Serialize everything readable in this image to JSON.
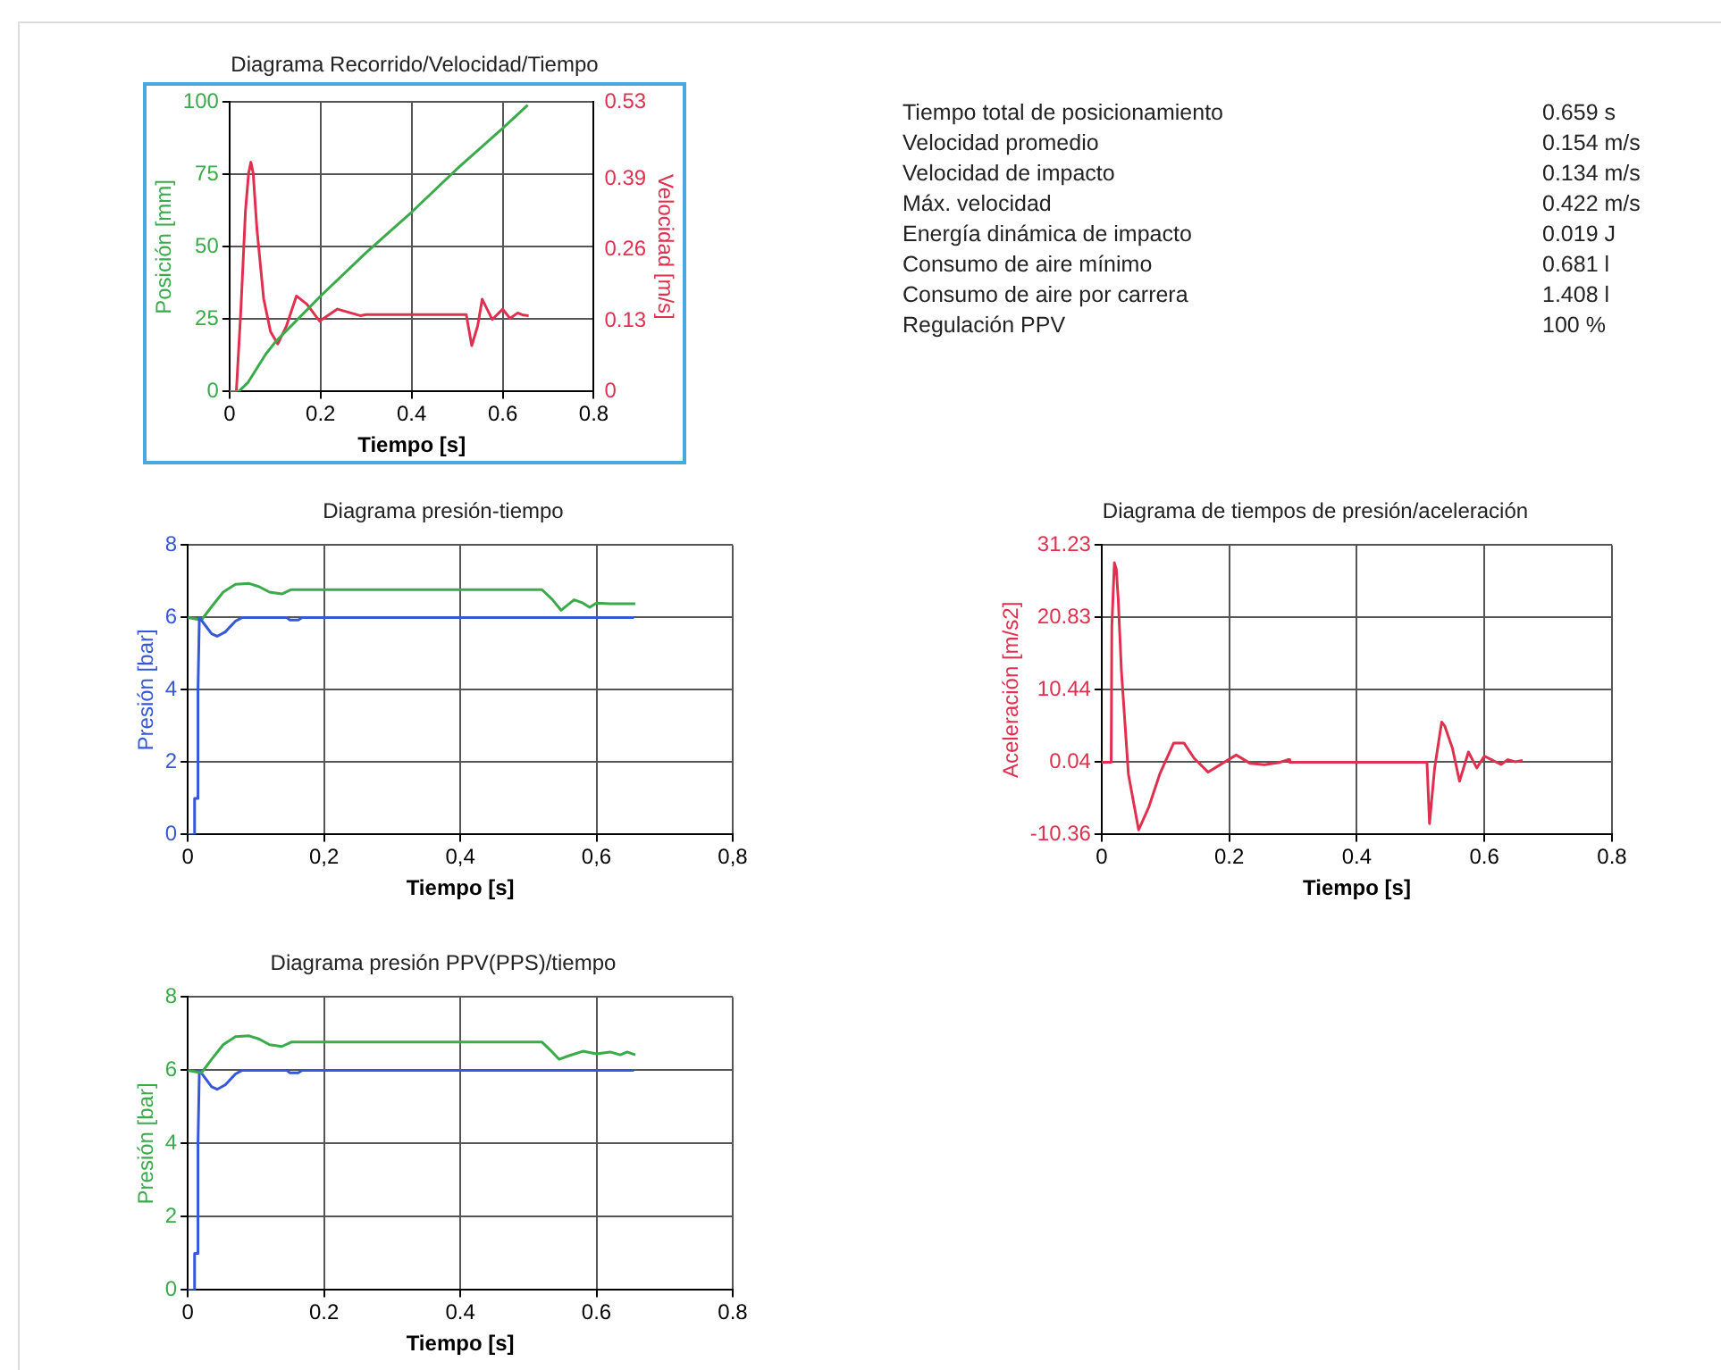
{
  "chart_data": [
    {
      "type": "line",
      "title": "Diagrama Recorrido/Velocidad/Tiempo",
      "xlabel": "Tiempo [s]",
      "ylabel": "Posición [mm]",
      "y2label": "Velocidad [m/s]",
      "xlim": [
        0,
        0.8
      ],
      "xticks": [
        0,
        0.2,
        0.4,
        0.6,
        0.8
      ],
      "ylim": [
        0,
        100
      ],
      "yticks": [
        0,
        25,
        50,
        75,
        100
      ],
      "y2lim": [
        0,
        0.53
      ],
      "y2ticks": [
        0,
        0.13,
        0.26,
        0.39,
        0.53
      ],
      "grid": true,
      "marker": "none",
      "series": [
        {
          "color": "#3aaa4a",
          "x": [
            0,
            0.02,
            0.04,
            0.06,
            0.08,
            0.1,
            0.15,
            0.2,
            0.3,
            0.4,
            0.5,
            0.6,
            0.655
          ],
          "values": [
            0,
            0,
            3,
            8,
            13,
            17,
            25,
            33,
            48,
            62,
            77,
            91,
            99
          ]
        },
        {
          "color": "#e0304f",
          "axis": "y2",
          "x": [
            0,
            0.015,
            0.025,
            0.035,
            0.042,
            0.047,
            0.052,
            0.06,
            0.075,
            0.09,
            0.106,
            0.125,
            0.147,
            0.17,
            0.198,
            0.237,
            0.287,
            0.3,
            0.52,
            0.532,
            0.545,
            0.555,
            0.577,
            0.6,
            0.616,
            0.633,
            0.645,
            0.657
          ],
          "values": [
            0,
            0,
            0.15,
            0.33,
            0.4,
            0.42,
            0.4,
            0.3,
            0.17,
            0.11,
            0.087,
            0.12,
            0.175,
            0.16,
            0.129,
            0.151,
            0.139,
            0.141,
            0.141,
            0.084,
            0.12,
            0.169,
            0.132,
            0.151,
            0.134,
            0.144,
            0.14,
            0.139
          ]
        }
      ]
    },
    {
      "type": "other",
      "annotations": [
        "Tiempo total de posicionamiento",
        "0.659  s",
        "Velocidad promedio",
        "0.154 m/s",
        "Velocidad de impacto",
        "0.134 m/s",
        "Máx. velocidad",
        "0.422 m/s",
        "Energía dinámica de impacto",
        "0.019 J",
        "Consumo de aire mínimo",
        "0.681 l",
        "Consumo de aire por carrera",
        "1.408 l",
        "Regulación PPV",
        "100 %"
      ]
    },
    {
      "type": "line",
      "title": "Diagrama presión-tiempo",
      "xlabel": "Tiempo [s]",
      "ylabel": "Presión [bar]",
      "xlim": [
        0,
        0.8
      ],
      "xticks": [
        0,
        {
          "value": 0.2,
          "label": "0,2"
        },
        {
          "value": 0.4,
          "label": "0,4"
        },
        {
          "value": 0.6,
          "label": "0,6"
        },
        {
          "value": 0.8,
          "label": "0,8"
        }
      ],
      "ylim": [
        0,
        8
      ],
      "yticks": [
        0,
        2,
        4,
        6,
        8
      ],
      "grid": true,
      "marker": "none",
      "series": [
        {
          "color": "#3558d8",
          "x": [
            0,
            0.008,
            0.01,
            0.013,
            0.015,
            0.017,
            0.025,
            0.035,
            0.043,
            0.055,
            0.07,
            0.08,
            0.145,
            0.15,
            0.162,
            0.168,
            0.655
          ],
          "values": [
            0,
            0,
            1,
            1,
            4,
            6,
            5.8,
            5.55,
            5.48,
            5.6,
            5.9,
            6,
            6,
            5.93,
            5.93,
            6,
            6
          ]
        },
        {
          "color": "#3aaa4a",
          "x": [
            0,
            0.02,
            0.035,
            0.052,
            0.07,
            0.09,
            0.105,
            0.12,
            0.138,
            0.152,
            0.52,
            0.535,
            0.548,
            0.567,
            0.58,
            0.59,
            0.6,
            0.62,
            0.657
          ],
          "values": [
            6,
            5.93,
            6.3,
            6.7,
            6.92,
            6.94,
            6.85,
            6.7,
            6.65,
            6.77,
            6.77,
            6.5,
            6.2,
            6.49,
            6.4,
            6.28,
            6.4,
            6.38,
            6.38
          ]
        }
      ]
    },
    {
      "type": "line",
      "title": "Diagrama de tiempos de presión/aceleración",
      "xlabel": "Tiempo [s]",
      "ylabel": "Aceleración [m/s2]",
      "xlim": [
        0,
        0.8
      ],
      "xticks": [
        0,
        0.2,
        0.4,
        0.6,
        0.8
      ],
      "ylim": [
        -10.36,
        31.23
      ],
      "yticks": [
        -10.36,
        0.04,
        10.44,
        20.83,
        31.23
      ],
      "grid": true,
      "marker": "none",
      "series": [
        {
          "color": "#e0304f",
          "x": [
            0,
            0.015,
            0.016,
            0.02,
            0.023,
            0.026,
            0.031,
            0.042,
            0.058,
            0.074,
            0.091,
            0.113,
            0.129,
            0.145,
            0.167,
            0.189,
            0.211,
            0.233,
            0.255,
            0.277,
            0.293,
            0.295,
            0.51,
            0.514,
            0.522,
            0.533,
            0.538,
            0.55,
            0.561,
            0.575,
            0.588,
            0.6,
            0.626,
            0.637,
            0.648,
            0.66
          ],
          "values": [
            0.04,
            0.04,
            19.5,
            28.7,
            27.8,
            23.5,
            13.2,
            -1.7,
            -9.7,
            -6.4,
            -1.7,
            2.8,
            2.8,
            0.6,
            -1.4,
            -0.15,
            1.07,
            -0.15,
            -0.33,
            -0.05,
            0.41,
            0.04,
            0.04,
            -8.8,
            -0.8,
            5.8,
            5.2,
            2,
            -2.7,
            1.5,
            -0.8,
            0.9,
            -0.3,
            0.4,
            0.1,
            0.3
          ]
        }
      ]
    },
    {
      "type": "line",
      "title": "Diagrama presión PPV(PPS)/tiempo",
      "xlabel": "Tiempo [s]",
      "ylabel": "Presión [bar]",
      "xlim": [
        0,
        0.8
      ],
      "xticks": [
        0,
        0.2,
        0.4,
        0.6,
        0.8
      ],
      "ylim": [
        0,
        8
      ],
      "yticks": [
        0,
        2,
        4,
        6,
        8
      ],
      "grid": true,
      "marker": "none",
      "series": [
        {
          "color": "#3aaa4a",
          "x": [
            0,
            0.02,
            0.035,
            0.052,
            0.07,
            0.09,
            0.105,
            0.12,
            0.138,
            0.152,
            0.52,
            0.535,
            0.545,
            0.56,
            0.58,
            0.6,
            0.62,
            0.635,
            0.645,
            0.657
          ],
          "values": [
            6,
            5.93,
            6.3,
            6.7,
            6.92,
            6.94,
            6.85,
            6.7,
            6.65,
            6.77,
            6.77,
            6.5,
            6.3,
            6.4,
            6.52,
            6.45,
            6.5,
            6.42,
            6.5,
            6.42
          ]
        },
        {
          "color": "#3558d8",
          "x": [
            0,
            0.008,
            0.01,
            0.013,
            0.015,
            0.017,
            0.025,
            0.035,
            0.043,
            0.055,
            0.07,
            0.08,
            0.145,
            0.15,
            0.162,
            0.168,
            0.655
          ],
          "values": [
            0,
            0,
            1,
            1,
            4,
            6,
            5.8,
            5.55,
            5.48,
            5.6,
            5.9,
            6,
            6,
            5.93,
            5.93,
            6,
            6
          ]
        }
      ]
    }
  ]
}
